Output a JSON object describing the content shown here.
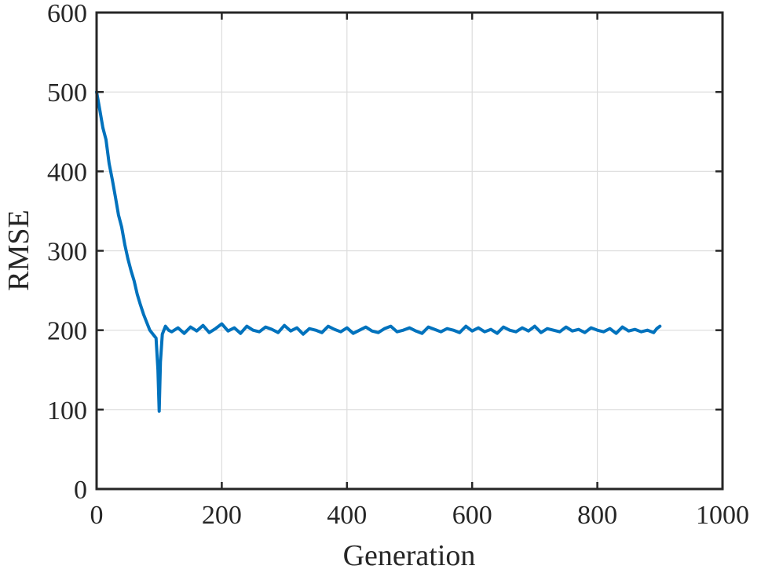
{
  "chart_data": {
    "type": "line",
    "title": "",
    "xlabel": "Generation",
    "ylabel": "RMSE",
    "xlim": [
      0,
      1000
    ],
    "ylim": [
      0,
      600
    ],
    "xticks": [
      "0",
      "200",
      "400",
      "600",
      "800",
      "1000"
    ],
    "yticks": [
      "0",
      "100",
      "200",
      "300",
      "400",
      "500",
      "600"
    ],
    "grid": true,
    "legend": "none",
    "series": [
      {
        "color": "#0072BD",
        "x": [
          0,
          5,
          10,
          15,
          20,
          25,
          30,
          35,
          40,
          45,
          50,
          55,
          60,
          65,
          70,
          75,
          80,
          85,
          90,
          95,
          98,
          100,
          102,
          105,
          110,
          115,
          120,
          130,
          140,
          150,
          160,
          170,
          180,
          190,
          200,
          210,
          220,
          230,
          240,
          250,
          260,
          270,
          280,
          290,
          300,
          310,
          320,
          330,
          340,
          350,
          360,
          370,
          380,
          390,
          400,
          410,
          420,
          430,
          440,
          450,
          460,
          470,
          480,
          490,
          500,
          510,
          520,
          530,
          540,
          550,
          560,
          570,
          580,
          590,
          600,
          610,
          620,
          630,
          640,
          650,
          660,
          670,
          680,
          690,
          700,
          710,
          720,
          730,
          740,
          750,
          760,
          770,
          780,
          790,
          800,
          810,
          820,
          830,
          840,
          850,
          860,
          870,
          880,
          890,
          895,
          900
        ],
        "y": [
          500,
          478,
          455,
          440,
          410,
          390,
          368,
          345,
          330,
          308,
          290,
          275,
          262,
          245,
          232,
          220,
          210,
          200,
          195,
          190,
          150,
          98,
          160,
          195,
          205,
          200,
          198,
          203,
          196,
          204,
          199,
          206,
          197,
          202,
          208,
          199,
          203,
          196,
          205,
          200,
          198,
          204,
          201,
          197,
          206,
          199,
          203,
          195,
          202,
          200,
          197,
          205,
          201,
          198,
          203,
          196,
          200,
          204,
          199,
          197,
          202,
          205,
          198,
          200,
          203,
          199,
          196,
          204,
          201,
          198,
          202,
          200,
          197,
          205,
          199,
          203,
          198,
          201,
          196,
          204,
          200,
          198,
          203,
          199,
          205,
          197,
          202,
          200,
          198,
          204,
          199,
          201,
          197,
          203,
          200,
          198,
          202,
          196,
          204,
          199,
          201,
          198,
          200,
          197,
          202,
          205
        ]
      }
    ]
  }
}
